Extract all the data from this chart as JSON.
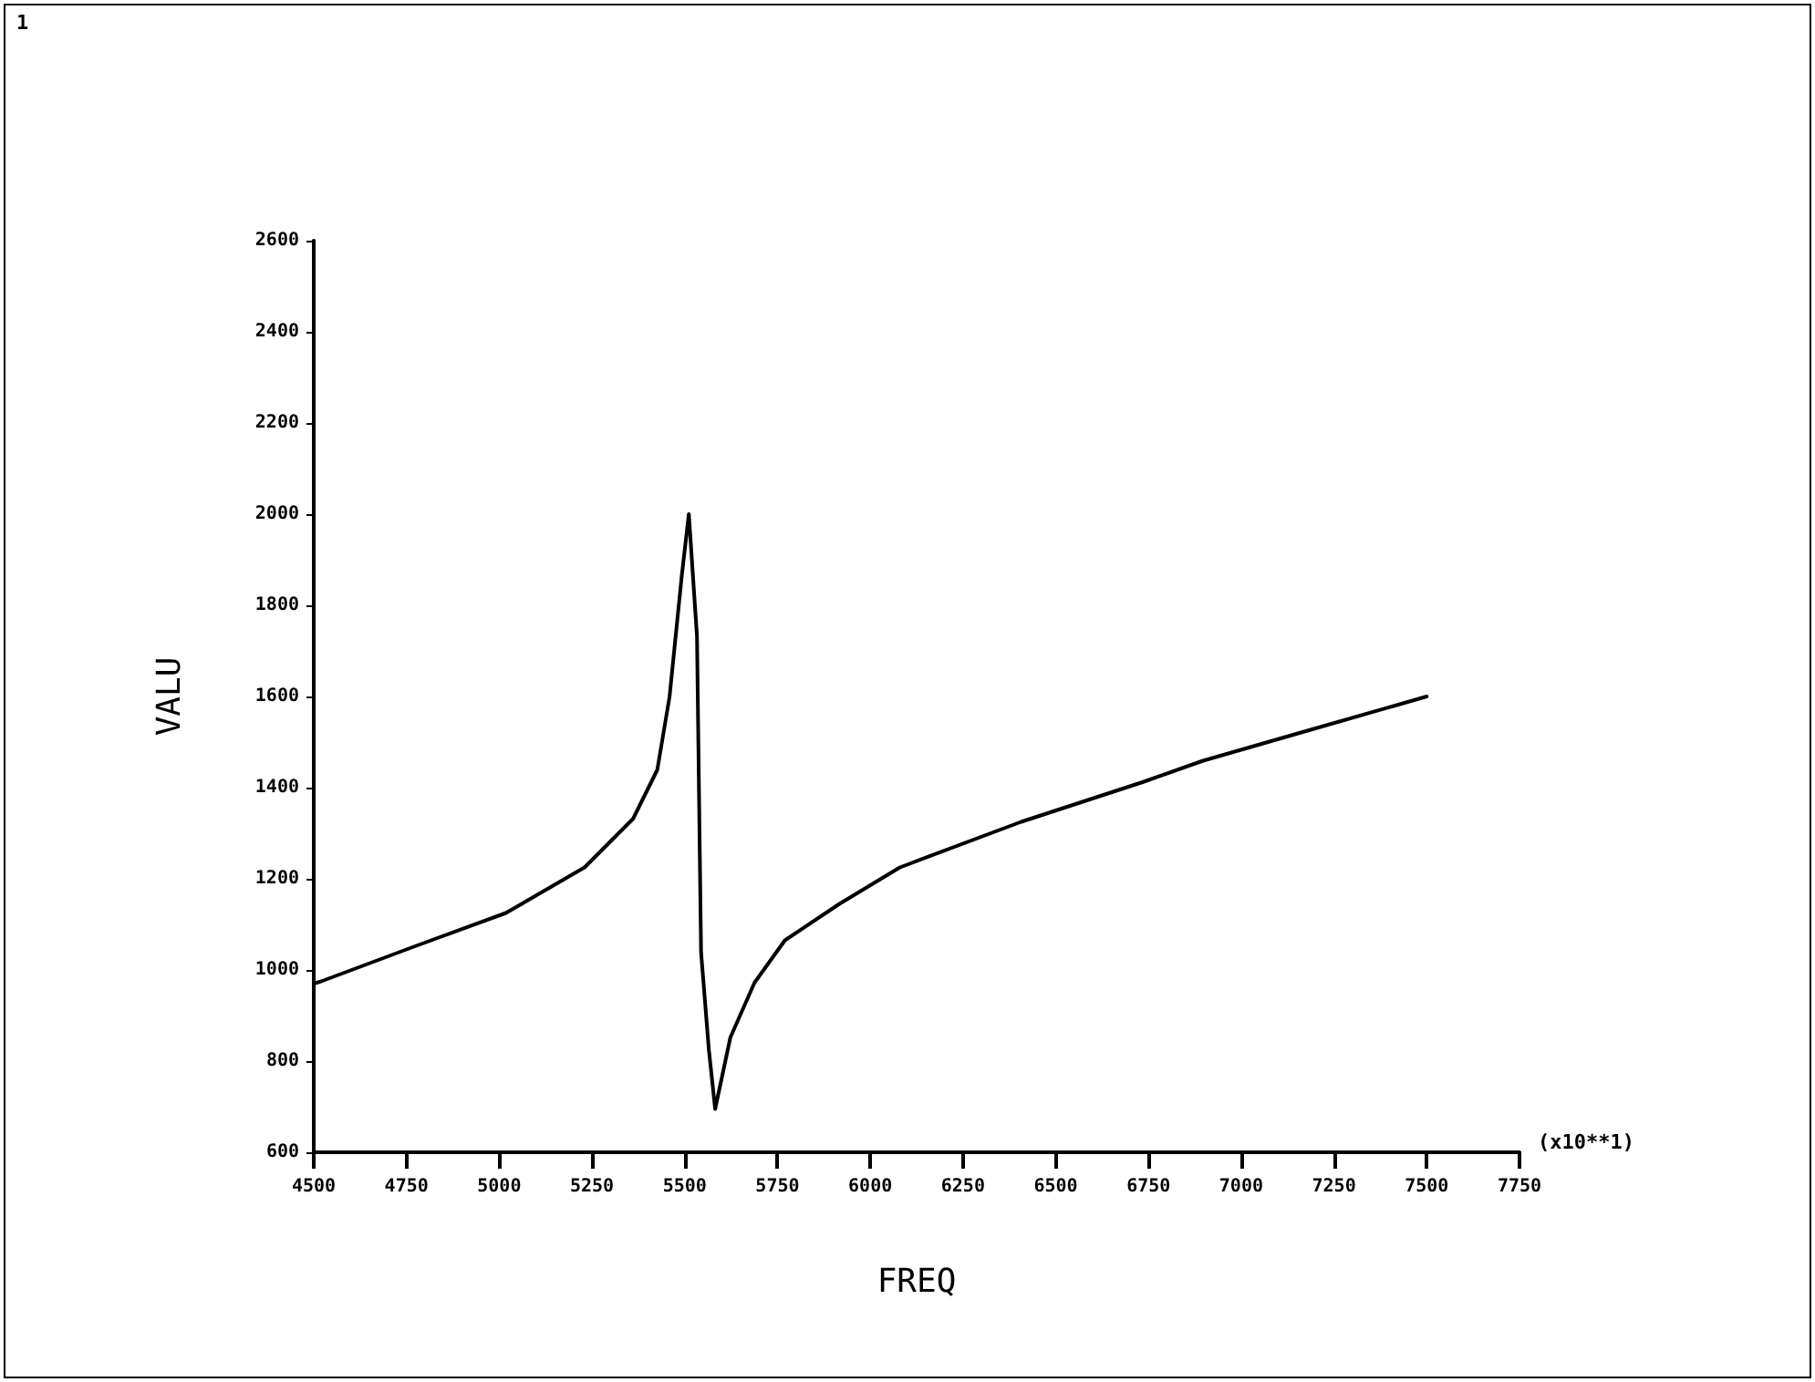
{
  "chart_data": {
    "type": "line",
    "xlabel": "FREQ",
    "ylabel": "VALU",
    "annotations": [
      "1",
      "(x10**1)"
    ],
    "x": [
      4500,
      4520,
      4773,
      5018,
      5230,
      5361,
      5426,
      5459,
      5492,
      5511,
      5533,
      5544,
      5565,
      5582,
      5623,
      5688,
      5770,
      5917,
      6080,
      6407,
      6734,
      6897,
      7200,
      7500
    ],
    "series": [
      {
        "color": "#000000",
        "values": [
          970,
          975,
          1052,
          1125,
          1225,
          1332,
          1439,
          1599,
          1865,
          2000,
          1732,
          1039,
          825,
          695,
          852,
          972,
          1065,
          1145,
          1225,
          1325,
          1412,
          1459,
          1530,
          1600
        ]
      }
    ],
    "xlim": [
      4500,
      7750
    ],
    "xticks": [
      4500,
      4750,
      5000,
      5250,
      5500,
      5750,
      6000,
      6250,
      6500,
      6750,
      7000,
      7250,
      7500,
      7750
    ],
    "ylim": [
      600,
      2600
    ],
    "yticks": [
      600,
      800,
      1000,
      1200,
      1400,
      1600,
      1800,
      2000,
      2200,
      2400,
      2600
    ],
    "grid": false,
    "marker": "none",
    "line_style": "solid"
  }
}
